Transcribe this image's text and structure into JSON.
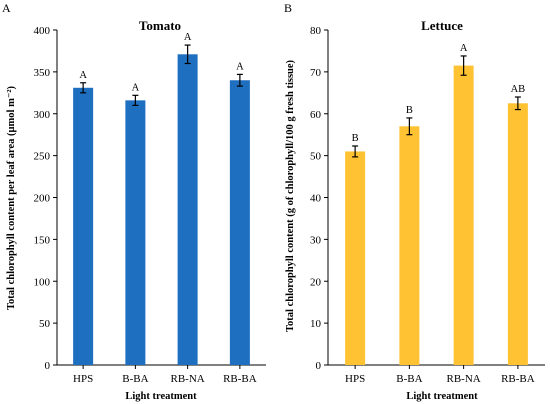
{
  "chart_data": [
    {
      "type": "bar",
      "panel": "A",
      "title": "Tomato",
      "xlabel": "Light treatment",
      "ylabel": "Total chlorophyll content per leaf area (µmol m⁻²)",
      "categories": [
        "HPS",
        "B-BA",
        "RB-NA",
        "RB-BA"
      ],
      "values": [
        331,
        316,
        371,
        340
      ],
      "errors": [
        6,
        6,
        11,
        7
      ],
      "significance": [
        "A",
        "A",
        "A",
        "A"
      ],
      "ylim": [
        0,
        400
      ],
      "yticks": [
        "0",
        "50",
        "100",
        "150",
        "200",
        "250",
        "300",
        "350",
        "400"
      ],
      "color": "#1f6fc1",
      "grid": false,
      "legend": "none"
    },
    {
      "type": "bar",
      "panel": "B",
      "title": "Lettuce",
      "xlabel": "Light treatment",
      "ylabel": "Total chlorophyll content (g of chlorophyll/100 g fresh tissue)",
      "categories": [
        "HPS",
        "B-BA",
        "RB-NA",
        "RB-BA"
      ],
      "values": [
        51,
        57,
        71.5,
        62.5
      ],
      "errors": [
        1.3,
        2,
        2.3,
        1.5
      ],
      "significance": [
        "B",
        "B",
        "A",
        "AB"
      ],
      "ylim": [
        0,
        80
      ],
      "yticks": [
        "0",
        "10",
        "20",
        "30",
        "40",
        "50",
        "60",
        "70",
        "80"
      ],
      "color": "#ffc233",
      "grid": false,
      "legend": "none"
    }
  ]
}
